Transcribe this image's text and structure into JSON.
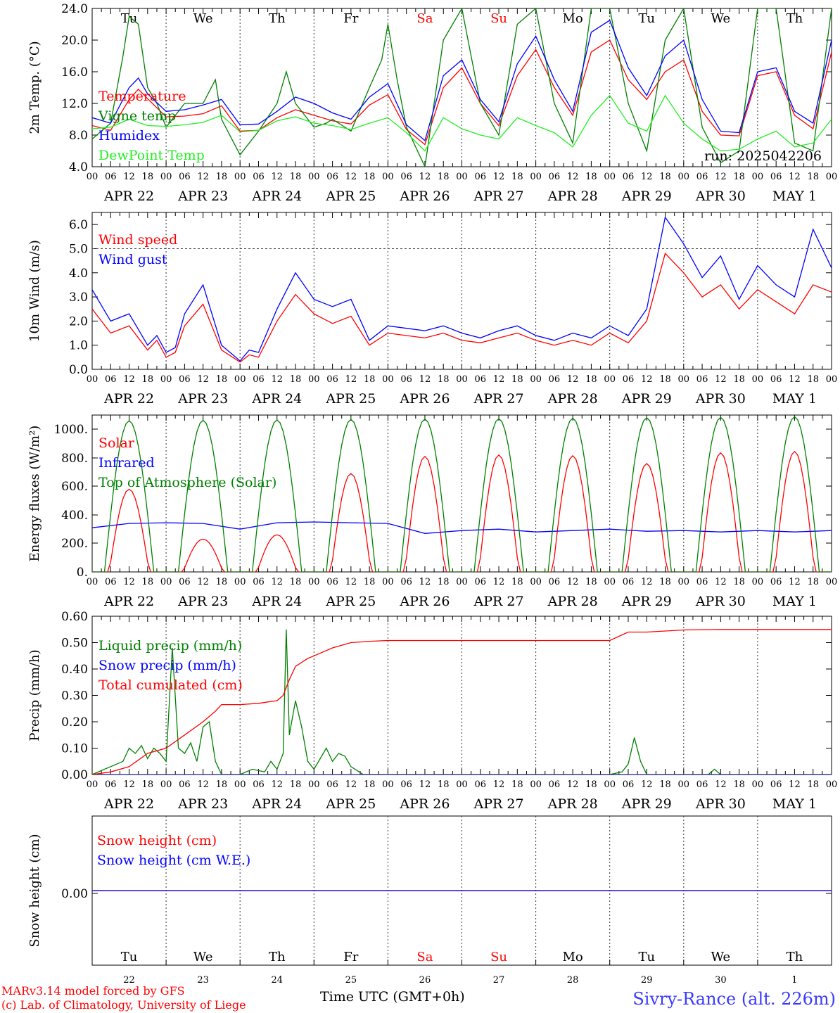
{
  "footer": {
    "model": "MARv3.14 model forced by GFS",
    "lab": "(c) Lab. of Climatology, University of Liege",
    "time_axis": "Time UTC (GMT+0h)",
    "station": "Sivry-Rance (alt. 226m)"
  },
  "colors": {
    "red": "#ff0000",
    "green": "#008000",
    "blue": "#0000ff",
    "light_green": "#22ee22",
    "station": "#3a3aff"
  },
  "chart_data": {
    "type": "line",
    "hour_tick_labels": [
      "00",
      "06",
      "12",
      "18"
    ],
    "day_names": [
      "Tu",
      "We",
      "Th",
      "Fr",
      "Sa",
      "Su",
      "Mo",
      "Tu",
      "We",
      "Th"
    ],
    "weekend_days": [
      "Sa",
      "Su"
    ],
    "dates": [
      "APR 22",
      "APR 23",
      "APR 24",
      "APR 25",
      "APR 26",
      "APR 27",
      "APR 28",
      "APR 29",
      "APR 30",
      "MAY  1"
    ],
    "day_numbers": [
      "22",
      "23",
      "24",
      "25",
      "26",
      "27",
      "28",
      "29",
      "30",
      "1"
    ],
    "panels": [
      {
        "id": "temperature",
        "ylabel": "2m Temp. (°C)",
        "ylim": [
          4,
          24
        ],
        "yticks": [
          "4.0",
          "8.0",
          "12.0",
          "16.0",
          "20.0",
          "24.0"
        ],
        "run": "run: 2025042206",
        "series": [
          {
            "name": "Temperature",
            "color": "red",
            "x": [
              0,
              6,
              12,
              15,
              18,
              24,
              30,
              36,
              42,
              48,
              54,
              60,
              66,
              72,
              78,
              84,
              90,
              96,
              102,
              108,
              114,
              120,
              126,
              132,
              138,
              144,
              150,
              156,
              162,
              168,
              174,
              180,
              186,
              192,
              198,
              204,
              210,
              216,
              222,
              228,
              234,
              240
            ],
            "y": [
              9.2,
              8.6,
              12.5,
              13.8,
              12.6,
              10.3,
              10.4,
              10.7,
              11.7,
              8.5,
              8.6,
              10.2,
              11.2,
              10.5,
              9.8,
              9.4,
              11.8,
              13.1,
              8.7,
              6.8,
              14.0,
              16.5,
              12.0,
              9.2,
              15.5,
              18.8,
              14.0,
              10.5,
              18.5,
              20.0,
              15.0,
              12.5,
              16.0,
              17.5,
              11.0,
              8.0,
              7.9,
              15.5,
              16.0,
              10.5,
              8.8,
              18.5
            ]
          },
          {
            "name": "Vigne temp",
            "color": "green",
            "x": [
              0,
              6,
              10,
              12,
              15,
              18,
              21,
              24,
              30,
              36,
              40,
              42,
              48,
              51,
              54,
              60,
              63,
              66,
              72,
              76,
              78,
              84,
              90,
              94,
              96,
              99,
              102,
              108,
              114,
              120,
              126,
              132,
              138,
              144,
              150,
              156,
              162,
              168,
              174,
              180,
              186,
              192,
              198,
              204,
              210,
              216,
              222,
              228,
              234,
              240
            ],
            "y": [
              7.5,
              9.5,
              18,
              23,
              22,
              14,
              12,
              9,
              12,
              12,
              15,
              10,
              5.5,
              7.0,
              8.5,
              12,
              16,
              12,
              9,
              9.5,
              10,
              8.5,
              14,
              17.5,
              22,
              15,
              9,
              4,
              20,
              24,
              12,
              8,
              22,
              24,
              12,
              7,
              24,
              24,
              12,
              6,
              20,
              24,
              9,
              4.5,
              6.0,
              24,
              24,
              7,
              6.0,
              24
            ]
          },
          {
            "name": "Humidex",
            "color": "blue",
            "x": [
              0,
              6,
              12,
              15,
              18,
              24,
              30,
              36,
              42,
              48,
              54,
              60,
              66,
              72,
              78,
              84,
              90,
              96,
              102,
              108,
              114,
              120,
              126,
              132,
              138,
              144,
              150,
              156,
              162,
              168,
              174,
              180,
              186,
              192,
              198,
              204,
              210,
              216,
              222,
              228,
              234,
              240
            ],
            "y": [
              10.2,
              9.5,
              14.0,
              15.2,
              13.2,
              11.0,
              11.2,
              11.8,
              12.5,
              9.3,
              9.4,
              11.0,
              12.8,
              12.0,
              10.8,
              10.0,
              12.8,
              14.5,
              9.3,
              7.3,
              15.5,
              17.5,
              12.5,
              9.7,
              17.0,
              20.5,
              15.0,
              11.0,
              21.0,
              22.5,
              16.5,
              13.0,
              18.0,
              20.0,
              12.5,
              8.5,
              8.3,
              16.0,
              16.5,
              11.0,
              9.5,
              20.0
            ]
          },
          {
            "name": "DewPoint Temp",
            "color": "light_green",
            "x": [
              0,
              6,
              12,
              18,
              24,
              30,
              36,
              42,
              48,
              54,
              60,
              66,
              72,
              78,
              84,
              90,
              96,
              102,
              108,
              114,
              120,
              126,
              132,
              138,
              144,
              150,
              156,
              162,
              168,
              174,
              180,
              186,
              192,
              198,
              204,
              210,
              216,
              222,
              228,
              234,
              240
            ],
            "y": [
              8.8,
              9.0,
              10.0,
              9.2,
              9.1,
              9.3,
              9.6,
              10.5,
              8.4,
              8.6,
              9.8,
              10.3,
              9.5,
              9.2,
              8.7,
              9.5,
              10.2,
              8.3,
              6.0,
              10.2,
              8.8,
              8.0,
              7.5,
              10.2,
              9.2,
              8.3,
              6.5,
              10.5,
              13.0,
              9.5,
              8.5,
              13.0,
              9.5,
              7.5,
              6.0,
              6.2,
              7.5,
              8.5,
              6.5,
              7.0,
              10.0
            ]
          }
        ]
      },
      {
        "id": "wind",
        "ylabel": "10m Wind (m/s)",
        "ylim": [
          0,
          6.5
        ],
        "yticks": [
          "0.0",
          "1.0",
          "2.0",
          "3.0",
          "4.0",
          "5.0",
          "6.0"
        ],
        "reference_line": 5.0,
        "series": [
          {
            "name": "Wind speed",
            "color": "red",
            "x": [
              0,
              6,
              12,
              18,
              21,
              24,
              27,
              30,
              36,
              42,
              48,
              51,
              54,
              60,
              66,
              72,
              78,
              84,
              90,
              96,
              102,
              108,
              114,
              120,
              126,
              132,
              138,
              144,
              150,
              156,
              162,
              168,
              174,
              180,
              186,
              192,
              198,
              204,
              210,
              216,
              222,
              228,
              234,
              240
            ],
            "y": [
              2.5,
              1.5,
              1.8,
              0.8,
              1.2,
              0.5,
              0.7,
              1.8,
              2.7,
              0.8,
              0.3,
              0.6,
              0.5,
              2.0,
              3.1,
              2.3,
              1.9,
              2.2,
              1.0,
              1.5,
              1.4,
              1.3,
              1.5,
              1.2,
              1.1,
              1.3,
              1.5,
              1.2,
              1.0,
              1.2,
              1.0,
              1.5,
              1.1,
              2.0,
              4.8,
              4.0,
              3.0,
              3.5,
              2.5,
              3.3,
              2.8,
              2.3,
              3.5,
              3.2
            ]
          },
          {
            "name": "Wind gust",
            "color": "blue",
            "x": [
              0,
              6,
              12,
              18,
              21,
              24,
              27,
              30,
              36,
              42,
              48,
              51,
              54,
              60,
              66,
              72,
              78,
              84,
              90,
              96,
              102,
              108,
              114,
              120,
              126,
              132,
              138,
              144,
              150,
              156,
              162,
              168,
              174,
              180,
              186,
              192,
              198,
              204,
              210,
              216,
              222,
              228,
              234,
              240
            ],
            "y": [
              3.3,
              2.0,
              2.3,
              1.0,
              1.4,
              0.7,
              0.9,
              2.3,
              3.5,
              1.0,
              0.35,
              0.8,
              0.7,
              2.5,
              4.0,
              2.9,
              2.6,
              2.9,
              1.2,
              1.8,
              1.7,
              1.6,
              1.8,
              1.5,
              1.3,
              1.6,
              1.8,
              1.4,
              1.2,
              1.5,
              1.3,
              1.8,
              1.4,
              2.5,
              6.3,
              5.2,
              3.8,
              4.7,
              2.9,
              4.3,
              3.5,
              3.0,
              5.8,
              4.2
            ]
          }
        ]
      },
      {
        "id": "energy",
        "ylabel": "Energy fluxes (W/m²)",
        "ylim": [
          0,
          1100
        ],
        "yticks": [
          "0.",
          "200.",
          "400.",
          "600.",
          "800.",
          "1000."
        ],
        "series": [
          {
            "name": "Solar",
            "color": "red",
            "daily_peaks": [
              580,
              230,
              260,
              690,
              810,
              820,
              815,
              760,
              835,
              845
            ]
          },
          {
            "name": "Infrared",
            "color": "blue",
            "x": [
              0,
              12,
              24,
              36,
              48,
              60,
              72,
              84,
              96,
              108,
              120,
              132,
              144,
              156,
              168,
              180,
              192,
              204,
              216,
              228,
              240
            ],
            "y": [
              310,
              340,
              345,
              340,
              300,
              345,
              350,
              345,
              340,
              270,
              290,
              300,
              280,
              290,
              300,
              285,
              290,
              280,
              290,
              280,
              290
            ]
          },
          {
            "name": "Top of Atmosphere (Solar)",
            "color": "green",
            "daily_peaks": [
              1060,
              1063,
              1066,
              1069,
              1072,
              1075,
              1078,
              1081,
              1084,
              1088
            ]
          }
        ]
      },
      {
        "id": "precip",
        "ylabel": "Precip (mm/h)",
        "ylim": [
          0,
          0.6
        ],
        "yticks": [
          "0.00",
          "0.10",
          "0.20",
          "0.30",
          "0.40",
          "0.50",
          "0.60"
        ],
        "series": [
          {
            "name": "Liquid precip (mm/h)",
            "color": "green",
            "x": [
              0,
              4,
              6,
              10,
              12,
              14,
              16,
              18,
              20,
              22,
              24,
              26,
              28,
              30,
              32,
              34,
              36,
              38,
              40,
              42,
              48,
              52,
              56,
              58,
              60,
              62,
              63,
              64,
              66,
              68,
              70,
              72,
              74,
              76,
              78,
              80,
              82,
              84,
              88,
              120,
              168,
              172,
              174,
              176,
              178,
              180,
              200,
              202,
              204,
              240
            ],
            "y": [
              0,
              0.02,
              0.03,
              0.05,
              0.1,
              0.08,
              0.11,
              0.06,
              0.1,
              0.08,
              0.05,
              0.48,
              0.1,
              0.08,
              0.12,
              0.05,
              0.18,
              0.2,
              0.05,
              0,
              0,
              0.02,
              0.01,
              0.05,
              0.02,
              0.08,
              0.55,
              0.15,
              0.28,
              0.18,
              0.05,
              0.02,
              0.06,
              0.1,
              0.05,
              0.08,
              0.07,
              0.03,
              0,
              0,
              0,
              0.01,
              0.04,
              0.14,
              0.05,
              0,
              0,
              0.02,
              0,
              0
            ]
          },
          {
            "name": "Snow precip (mm/h)",
            "color": "blue",
            "x": [
              0,
              240
            ],
            "y": [
              0,
              0
            ]
          },
          {
            "name": "Total cumulated (cm)",
            "color": "red",
            "x": [
              0,
              6,
              12,
              18,
              24,
              30,
              36,
              40,
              42,
              48,
              54,
              60,
              62,
              64,
              66,
              70,
              72,
              78,
              84,
              90,
              96,
              120,
              168,
              174,
              180,
              192,
              204,
              240
            ],
            "y": [
              0,
              0.01,
              0.03,
              0.08,
              0.1,
              0.15,
              0.2,
              0.24,
              0.265,
              0.265,
              0.27,
              0.28,
              0.3,
              0.36,
              0.41,
              0.44,
              0.45,
              0.48,
              0.5,
              0.505,
              0.508,
              0.508,
              0.508,
              0.54,
              0.54,
              0.548,
              0.55,
              0.55
            ]
          }
        ]
      },
      {
        "id": "snow",
        "ylabel": "Snow height (cm)",
        "yticks": [
          "0.00"
        ],
        "series": [
          {
            "name": "Snow height (cm)",
            "color": "red",
            "x": [
              0,
              240
            ],
            "y": [
              0,
              0
            ]
          },
          {
            "name": "Snow height (cm W.E.)",
            "color": "blue",
            "x": [
              0,
              240
            ],
            "y": [
              0,
              0
            ]
          }
        ]
      }
    ]
  }
}
